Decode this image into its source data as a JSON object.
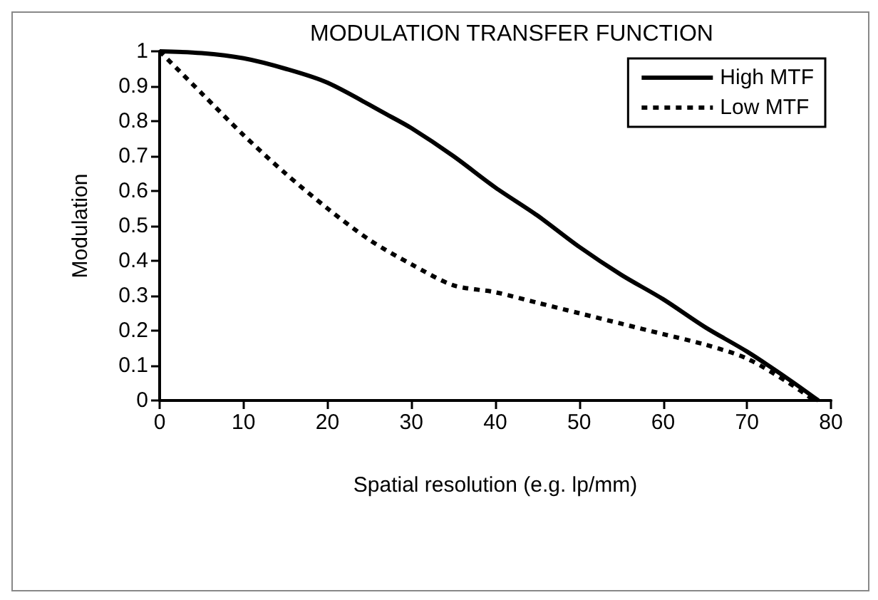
{
  "chart_data": {
    "type": "line",
    "title": "MODULATION TRANSFER FUNCTION",
    "xlabel": "Spatial resolution (e.g. lp/mm)",
    "ylabel": "Modulation",
    "xlim": [
      0,
      80
    ],
    "xticks": [
      0,
      10,
      20,
      30,
      40,
      50,
      60,
      70,
      80
    ],
    "ylim": [
      0,
      1
    ],
    "yticks": [
      0,
      0.1,
      0.2,
      0.3,
      0.4,
      0.5,
      0.6,
      0.7,
      0.8,
      0.9,
      1
    ],
    "grid": false,
    "legend": "top right",
    "marker": "none",
    "series": [
      {
        "name": "High MTF",
        "color": "#000000",
        "line_style": "solid",
        "x": [
          0,
          5,
          10,
          15,
          20,
          27,
          30,
          35,
          40,
          45,
          50,
          55,
          60,
          65,
          70,
          75,
          78.5
        ],
        "values": [
          1,
          0.995,
          0.98,
          0.95,
          0.91,
          0.82,
          0.78,
          0.7,
          0.61,
          0.53,
          0.44,
          0.36,
          0.29,
          0.21,
          0.14,
          0.06,
          0
        ]
      },
      {
        "name": "Low MTF",
        "color": "#000000",
        "line_style": "dotted",
        "x": [
          0,
          5,
          10,
          15,
          20,
          25,
          30,
          35,
          40,
          45,
          50,
          55,
          60,
          65,
          70,
          75,
          78
        ],
        "values": [
          1,
          0.88,
          0.76,
          0.65,
          0.55,
          0.46,
          0.39,
          0.33,
          0.31,
          0.28,
          0.25,
          0.22,
          0.19,
          0.16,
          0.12,
          0.05,
          0
        ]
      }
    ]
  }
}
